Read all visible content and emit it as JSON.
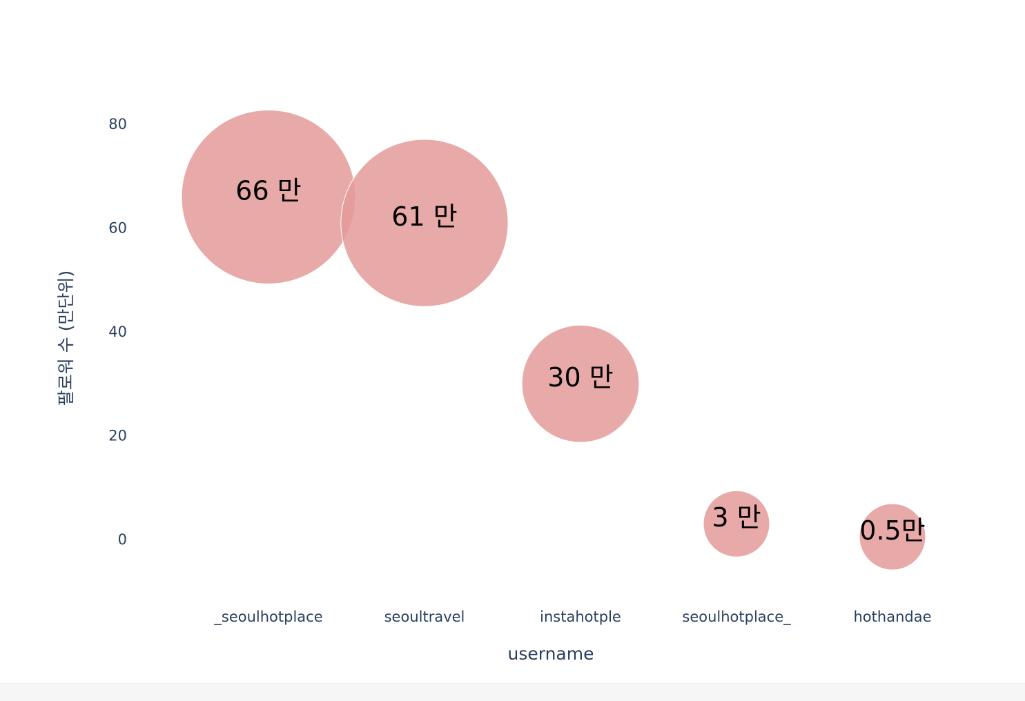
{
  "chart_data": {
    "type": "scatter",
    "mode": "bubble",
    "xlabel": "username",
    "ylabel": "팔로워 수 (만단위)",
    "categories": [
      "_seoulhotplace",
      "seoultravel",
      "instahotple",
      "seoulhotplace_",
      "hothandae"
    ],
    "values": [
      66,
      61,
      30,
      3,
      0.5
    ],
    "bubble_labels": [
      "66 만",
      "61 만",
      "30 만",
      "3 만",
      "0.5만"
    ],
    "bubble_sizes": [
      66,
      61,
      30,
      3,
      0.5
    ],
    "ylim": [
      -10,
      90
    ],
    "yticks": [
      0,
      20,
      40,
      60,
      80
    ],
    "grid": false,
    "colors": {
      "bubble_fill": "#e49b99",
      "bubble_stroke": "#ffffff",
      "axis_text": "#2a3f5f"
    }
  }
}
